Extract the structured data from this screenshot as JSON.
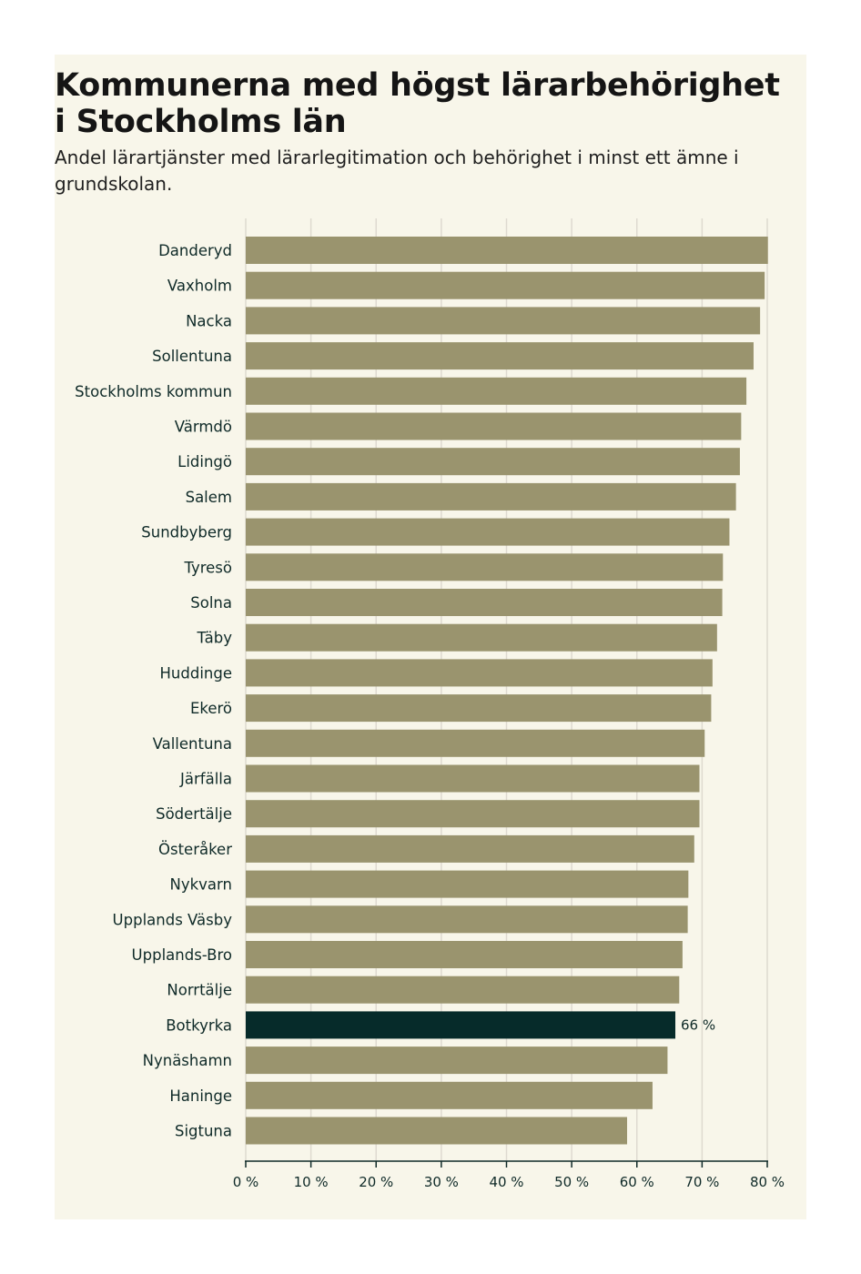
{
  "title": "Kommunerna med högst lärarbehörighet i Stockholms län",
  "subtitle": "Andel lärartjänster med lärarlegitimation och behörighet i minst ett ämne i grundskolan.",
  "colors": {
    "background": "#f8f6ea",
    "bar": "#9a946e",
    "highlight": "#062b2a",
    "grid": "#dedad0",
    "axis": "#0f2a28"
  },
  "chart_data": {
    "type": "bar",
    "orientation": "horizontal",
    "title": "Kommunerna med högst lärarbehörighet i Stockholms län",
    "xlim": [
      0,
      80
    ],
    "ticks": [
      0,
      10,
      20,
      30,
      40,
      50,
      60,
      70,
      80
    ],
    "tick_labels": [
      "0 %",
      "10 %",
      "20 %",
      "30 %",
      "40 %",
      "50 %",
      "60 %",
      "70 %",
      "80 %"
    ],
    "grid": true,
    "categories": [
      "Danderyd",
      "Vaxholm",
      "Nacka",
      "Sollentuna",
      "Stockholms kommun",
      "Värmdö",
      "Lidingö",
      "Salem",
      "Sundbyberg",
      "Tyresö",
      "Solna",
      "Täby",
      "Huddinge",
      "Ekerö",
      "Vallentuna",
      "Järfälla",
      "Södertälje",
      "Österåker",
      "Nykvarn",
      "Upplands Väsby",
      "Upplands-Bro",
      "Norrtälje",
      "Botkyrka",
      "Nynäshamn",
      "Haninge",
      "Sigtuna"
    ],
    "values": [
      80.1,
      79.6,
      78.9,
      77.9,
      76.8,
      76.0,
      75.8,
      75.2,
      74.2,
      73.2,
      73.1,
      72.3,
      71.6,
      71.4,
      70.4,
      69.6,
      69.6,
      68.8,
      67.9,
      67.8,
      67.0,
      66.5,
      65.9,
      64.7,
      62.4,
      58.5
    ],
    "highlight": "Botkyrka",
    "annotation": {
      "category": "Botkyrka",
      "text": "66 %"
    }
  }
}
